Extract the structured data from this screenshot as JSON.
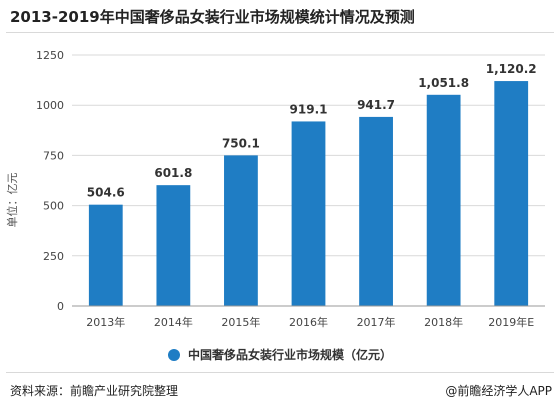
{
  "page": {
    "title": "2013-2019年中国奢侈品女装行业市场规模统计情况及预测",
    "source": "资料来源：前瞻产业研究院整理",
    "credit": "@前瞻经济学人APP"
  },
  "colors": {
    "bar": "#1f7dc4",
    "grid": "#d9d9d9",
    "axis": "#999999"
  },
  "chart_data": {
    "type": "bar",
    "title": "2013-2019年中国奢侈品女装行业市场规模统计情况及预测",
    "ylabel": "单位：亿元",
    "xlabel": "",
    "categories": [
      "2013年",
      "2014年",
      "2015年",
      "2016年",
      "2017年",
      "2018年",
      "2019年E"
    ],
    "series": [
      {
        "name": "中国奢侈品女装行业市场规模（亿元）",
        "values": [
          504.6,
          601.8,
          750.1,
          919.1,
          941.7,
          1051.8,
          1120.2
        ],
        "labels": [
          "504.6",
          "601.8",
          "750.1",
          "919.1",
          "941.7",
          "1,051.8",
          "1,120.2"
        ]
      }
    ],
    "ylim": [
      0,
      1250
    ],
    "yticks": [
      0,
      250,
      500,
      750,
      1000,
      1250
    ],
    "grid": true,
    "legend": "bottom"
  }
}
